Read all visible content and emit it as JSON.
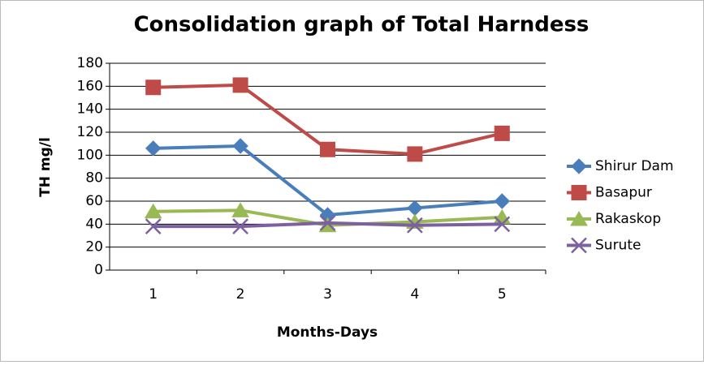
{
  "chart_data": {
    "type": "line",
    "title": "Consolidation graph of Total Harndess",
    "x_label": "Months-Days",
    "y_label": "TH mg/l",
    "categories": [
      "1",
      "2",
      "3",
      "4",
      "5"
    ],
    "series": [
      {
        "name": "Shirur Dam",
        "color": "#4a7ebb",
        "marker": "diamond",
        "values": [
          106,
          108,
          48,
          54,
          60
        ]
      },
      {
        "name": "Basapur",
        "color": "#be4b48",
        "marker": "square",
        "values": [
          159,
          161,
          105,
          101,
          119
        ]
      },
      {
        "name": "Rakaskop",
        "color": "#98b954",
        "marker": "triangle",
        "values": [
          51,
          52,
          39,
          42,
          46
        ]
      },
      {
        "name": "Surute",
        "color": "#7d60a0",
        "marker": "x",
        "values": [
          38,
          38,
          41,
          39,
          40
        ]
      }
    ],
    "ylim": [
      0,
      180
    ],
    "yticks": [
      0,
      20,
      40,
      60,
      80,
      100,
      120,
      140,
      160,
      180
    ],
    "grid": true,
    "legend": "right"
  }
}
